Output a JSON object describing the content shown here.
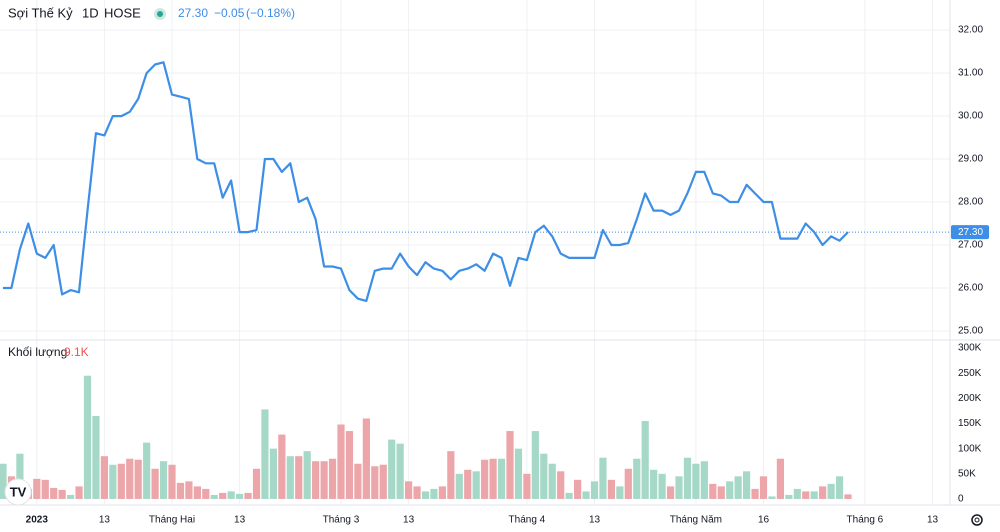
{
  "header": {
    "symbol": "Sợi Thế Kỷ",
    "interval": "1D",
    "exchange": "HOSE",
    "change": "−0.05",
    "change_pct": "(−0.18%)"
  },
  "chart_data": [
    {
      "type": "line",
      "color": "#3d8ee6",
      "last_value": {
        "value": 27.3,
        "label": "27.30"
      },
      "ylim": [
        24.79,
        32.7
      ],
      "yticks": [
        {
          "value": 25,
          "label": "25.00"
        },
        {
          "value": 26,
          "label": "26.00"
        },
        {
          "value": 27,
          "label": "27.00"
        },
        {
          "value": 28,
          "label": "28.00"
        },
        {
          "value": 29,
          "label": "29.00"
        },
        {
          "value": 30,
          "label": "30.00"
        },
        {
          "value": 31,
          "label": "31.00"
        },
        {
          "value": 32,
          "label": "32.00"
        }
      ],
      "grid": true,
      "values": [
        26.0,
        26.0,
        26.9,
        27.5,
        26.8,
        26.7,
        27.0,
        25.85,
        25.95,
        25.9,
        27.8,
        29.6,
        29.55,
        30.0,
        30.0,
        30.1,
        30.4,
        31.0,
        31.2,
        31.25,
        30.5,
        30.45,
        30.4,
        29.0,
        28.9,
        28.9,
        28.1,
        28.5,
        27.3,
        27.3,
        27.35,
        29.0,
        29.0,
        28.7,
        28.9,
        28.0,
        28.1,
        27.6,
        26.5,
        26.5,
        26.45,
        25.95,
        25.75,
        25.7,
        26.4,
        26.45,
        26.45,
        26.8,
        26.5,
        26.3,
        26.6,
        26.45,
        26.4,
        26.2,
        26.4,
        26.45,
        26.55,
        26.4,
        26.8,
        26.7,
        26.05,
        26.7,
        26.65,
        27.3,
        27.45,
        27.2,
        26.8,
        26.7,
        26.7,
        26.7,
        26.7,
        27.35,
        27.0,
        27.0,
        27.05,
        27.6,
        28.2,
        27.8,
        27.8,
        27.7,
        27.8,
        28.2,
        28.7,
        28.7,
        28.2,
        28.15,
        28.0,
        28.0,
        28.4,
        28.2,
        28.0,
        28.0,
        27.15,
        27.15,
        27.15,
        27.5,
        27.3,
        27.0,
        27.2,
        27.1,
        27.3,
        null,
        null,
        null,
        null,
        null,
        null,
        null,
        null,
        null,
        null,
        null
      ]
    },
    {
      "type": "bar",
      "name": "Khối lượng",
      "last_value": {
        "value": 9.1,
        "label": "9.1K"
      },
      "ylim": [
        -12,
        316
      ],
      "yticks": [
        0,
        {
          "value": 50,
          "label": "50K"
        },
        {
          "value": 100,
          "label": "100K"
        },
        {
          "value": 150,
          "label": "150K"
        },
        {
          "value": 200,
          "label": "200K"
        },
        {
          "value": 250,
          "label": "250K"
        },
        {
          "value": 300,
          "label": "300K"
        }
      ],
      "categories": [
        null,
        null,
        null,
        null,
        "2023",
        null,
        null,
        null,
        null,
        null,
        null,
        null,
        "13",
        null,
        null,
        null,
        null,
        null,
        null,
        null,
        "Tháng Hai",
        null,
        null,
        null,
        null,
        null,
        null,
        null,
        "13",
        null,
        null,
        null,
        null,
        null,
        null,
        null,
        null,
        null,
        null,
        null,
        "Tháng 3",
        null,
        null,
        null,
        null,
        null,
        null,
        null,
        "13",
        null,
        null,
        null,
        null,
        null,
        null,
        null,
        null,
        null,
        null,
        null,
        null,
        null,
        "Tháng 4",
        null,
        null,
        null,
        null,
        null,
        null,
        null,
        "13",
        null,
        null,
        null,
        null,
        null,
        null,
        null,
        null,
        null,
        null,
        null,
        "Tháng Năm",
        null,
        null,
        null,
        null,
        null,
        null,
        null,
        "16",
        null,
        null,
        null,
        null,
        null,
        null,
        null,
        null,
        null,
        null,
        null,
        "Tháng 6",
        null,
        null,
        null,
        null,
        null,
        null,
        null,
        "13",
        null
      ],
      "values": [
        70,
        45,
        90,
        20,
        40,
        38,
        22,
        18,
        8,
        25,
        245,
        165,
        85,
        68,
        70,
        80,
        78,
        112,
        60,
        75,
        68,
        32,
        35,
        25,
        20,
        8,
        12,
        15,
        10,
        12,
        60,
        178,
        100,
        128,
        85,
        85,
        95,
        75,
        75,
        80,
        148,
        135,
        70,
        160,
        65,
        68,
        118,
        110,
        35,
        25,
        15,
        20,
        25,
        95,
        50,
        58,
        55,
        78,
        80,
        80,
        135,
        100,
        50,
        135,
        90,
        70,
        55,
        12,
        38,
        15,
        35,
        82,
        38,
        25,
        60,
        80,
        155,
        58,
        50,
        25,
        45,
        82,
        70,
        75,
        30,
        25,
        35,
        45,
        55,
        20,
        45,
        5,
        80,
        8,
        20,
        15,
        15,
        25,
        30,
        45,
        9.1,
        null,
        null,
        null,
        null,
        null,
        null,
        null,
        null,
        null,
        null,
        null
      ],
      "colors": [
        "#a6d8c8",
        "#eca5a9",
        "#a6d8c8",
        "#eca5a9",
        "#eca5a9",
        "#eca5a9",
        "#eca5a9",
        "#eca5a9",
        "#a6d8c8",
        "#eca5a9",
        "#a6d8c8",
        "#a6d8c8",
        "#eca5a9",
        "#a6d8c8",
        "#eca5a9",
        "#eca5a9",
        "#eca5a9",
        "#a6d8c8",
        "#eca5a9",
        "#a6d8c8",
        "#eca5a9",
        "#eca5a9",
        "#eca5a9",
        "#eca5a9",
        "#eca5a9",
        "#a6d8c8",
        "#eca5a9",
        "#a6d8c8",
        "#a6d8c8",
        "#eca5a9",
        "#eca5a9",
        "#a6d8c8",
        "#a6d8c8",
        "#eca5a9",
        "#a6d8c8",
        "#eca5a9",
        "#a6d8c8",
        "#eca5a9",
        "#eca5a9",
        "#eca5a9",
        "#eca5a9",
        "#eca5a9",
        "#eca5a9",
        "#eca5a9",
        "#eca5a9",
        "#eca5a9",
        "#a6d8c8",
        "#a6d8c8",
        "#eca5a9",
        "#eca5a9",
        "#a6d8c8",
        "#a6d8c8",
        "#eca5a9",
        "#eca5a9",
        "#a6d8c8",
        "#eca5a9",
        "#a6d8c8",
        "#eca5a9",
        "#eca5a9",
        "#a6d8c8",
        "#eca5a9",
        "#a6d8c8",
        "#eca5a9",
        "#a6d8c8",
        "#a6d8c8",
        "#a6d8c8",
        "#eca5a9",
        "#a6d8c8",
        "#eca5a9",
        "#a6d8c8",
        "#a6d8c8",
        "#a6d8c8",
        "#eca5a9",
        "#a6d8c8",
        "#eca5a9",
        "#a6d8c8",
        "#a6d8c8",
        "#a6d8c8",
        "#a6d8c8",
        "#eca5a9",
        "#a6d8c8",
        "#a6d8c8",
        "#a6d8c8",
        "#a6d8c8",
        "#eca5a9",
        "#eca5a9",
        "#a6d8c8",
        "#a6d8c8",
        "#a6d8c8",
        "#eca5a9",
        "#eca5a9",
        "#a6d8c8",
        "#eca5a9",
        "#a6d8c8",
        "#a6d8c8",
        "#eca5a9",
        "#a6d8c8",
        "#eca5a9",
        "#a6d8c8",
        "#a6d8c8",
        "#eca5a9",
        "#eca5a9",
        "#eca5a9",
        "#eca5a9",
        "#eca5a9",
        "#eca5a9",
        "#eca5a9",
        "#eca5a9",
        "#eca5a9",
        "#eca5a9",
        "#eca5a9",
        "#eca5a9"
      ]
    }
  ]
}
